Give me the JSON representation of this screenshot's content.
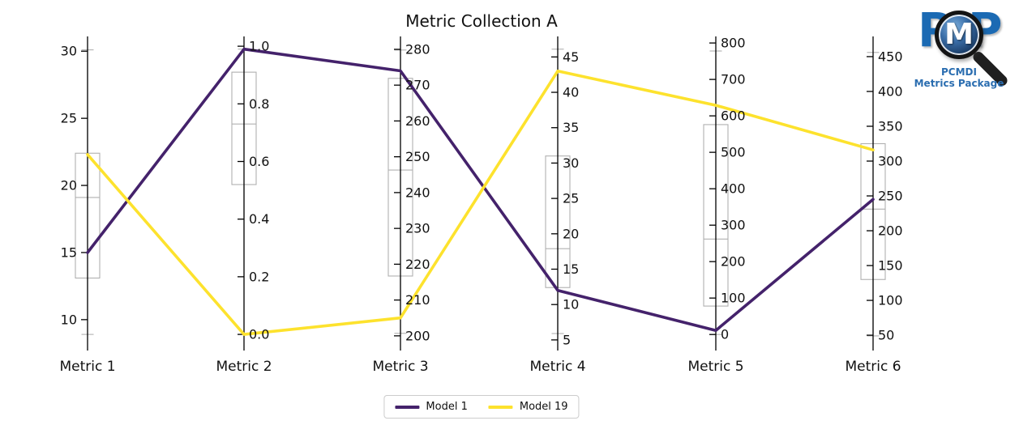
{
  "title": "Metric Collection A",
  "logo": {
    "p_left": "P",
    "m": "M",
    "p_right": "P",
    "org": "PCMDI",
    "package": "Metrics Package"
  },
  "legend": {
    "items": [
      {
        "label": "Model 1",
        "color": "#44226b"
      },
      {
        "label": "Model 19",
        "color": "#fde22d"
      }
    ]
  },
  "colors": {
    "axis": "#000000",
    "box": "#b0b0b0",
    "tick_label": "#111111",
    "model1": "#44226b",
    "model19": "#fde22d"
  },
  "chart_data": {
    "type": "parallel-coordinates",
    "title": "Metric Collection A",
    "legend_position": "bottom-center",
    "series": [
      {
        "name": "Model 1",
        "color": "#44226b",
        "values": [
          15.0,
          0.99,
          274.0,
          12.0,
          11.0,
          245.0
        ]
      },
      {
        "name": "Model 19",
        "color": "#fde22d",
        "values": [
          22.3,
          0.0,
          205.0,
          43.0,
          629.0,
          316.0
        ]
      }
    ],
    "axes": [
      {
        "label": "Metric 1",
        "domain": [
          7.7,
          31.1
        ],
        "ticks": [
          10,
          15,
          20,
          25,
          30
        ],
        "tick_labels": [
          "10",
          "15",
          "20",
          "25",
          "30"
        ],
        "tick_side": "left",
        "box": {
          "whisker_low": 8.9,
          "q1": 13.1,
          "median": 19.1,
          "q3": 22.4,
          "whisker_high": 30.1
        }
      },
      {
        "label": "Metric 2",
        "domain": [
          -0.056,
          1.034
        ],
        "ticks": [
          0.0,
          0.2,
          0.4,
          0.6,
          0.8,
          1.0
        ],
        "tick_labels": [
          "0.0",
          "0.2",
          "0.4",
          "0.6",
          "0.8",
          "1.0"
        ],
        "tick_side": "right",
        "box": {
          "whisker_low": 0.0,
          "q1": 0.52,
          "median": 0.73,
          "q3": 0.91,
          "whisker_high": 0.99
        }
      },
      {
        "label": "Metric 3",
        "domain": [
          195.9,
          283.6
        ],
        "ticks": [
          200,
          210,
          220,
          230,
          240,
          250,
          260,
          270,
          280
        ],
        "tick_labels": [
          "200",
          "210",
          "220",
          "230",
          "240",
          "250",
          "260",
          "270",
          "280"
        ],
        "tick_side": "right",
        "box": {
          "whisker_low": 200.7,
          "q1": 216.7,
          "median": 246.3,
          "q3": 271.9,
          "whisker_high": 279.8
        }
      },
      {
        "label": "Metric 4",
        "domain": [
          3.5,
          47.9
        ],
        "ticks": [
          5,
          10,
          15,
          20,
          25,
          30,
          35,
          40,
          45
        ],
        "tick_labels": [
          "5",
          "10",
          "15",
          "20",
          "25",
          "30",
          "35",
          "40",
          "45"
        ],
        "tick_side": "right",
        "box": {
          "whisker_low": 5.9,
          "q1": 12.4,
          "median": 17.9,
          "q3": 31.0,
          "whisker_high": 46.1
        }
      },
      {
        "label": "Metric 5",
        "domain": [
          -44,
          818
        ],
        "ticks": [
          0,
          100,
          200,
          300,
          400,
          500,
          600,
          700,
          800
        ],
        "tick_labels": [
          "0",
          "100",
          "200",
          "300",
          "400",
          "500",
          "600",
          "700",
          "800"
        ],
        "tick_side": "right",
        "box": {
          "whisker_low": 0,
          "q1": 78,
          "median": 262,
          "q3": 576,
          "whisker_high": 778
        }
      },
      {
        "label": "Metric 6",
        "domain": [
          28,
          479
        ],
        "ticks": [
          50,
          100,
          150,
          200,
          250,
          300,
          350,
          400,
          450
        ],
        "tick_labels": [
          "50",
          "100",
          "150",
          "200",
          "250",
          "300",
          "350",
          "400",
          "450"
        ],
        "tick_side": "right",
        "box": {
          "whisker_low": 49,
          "q1": 130,
          "median": 231,
          "q3": 325,
          "whisker_high": 456
        }
      }
    ]
  }
}
